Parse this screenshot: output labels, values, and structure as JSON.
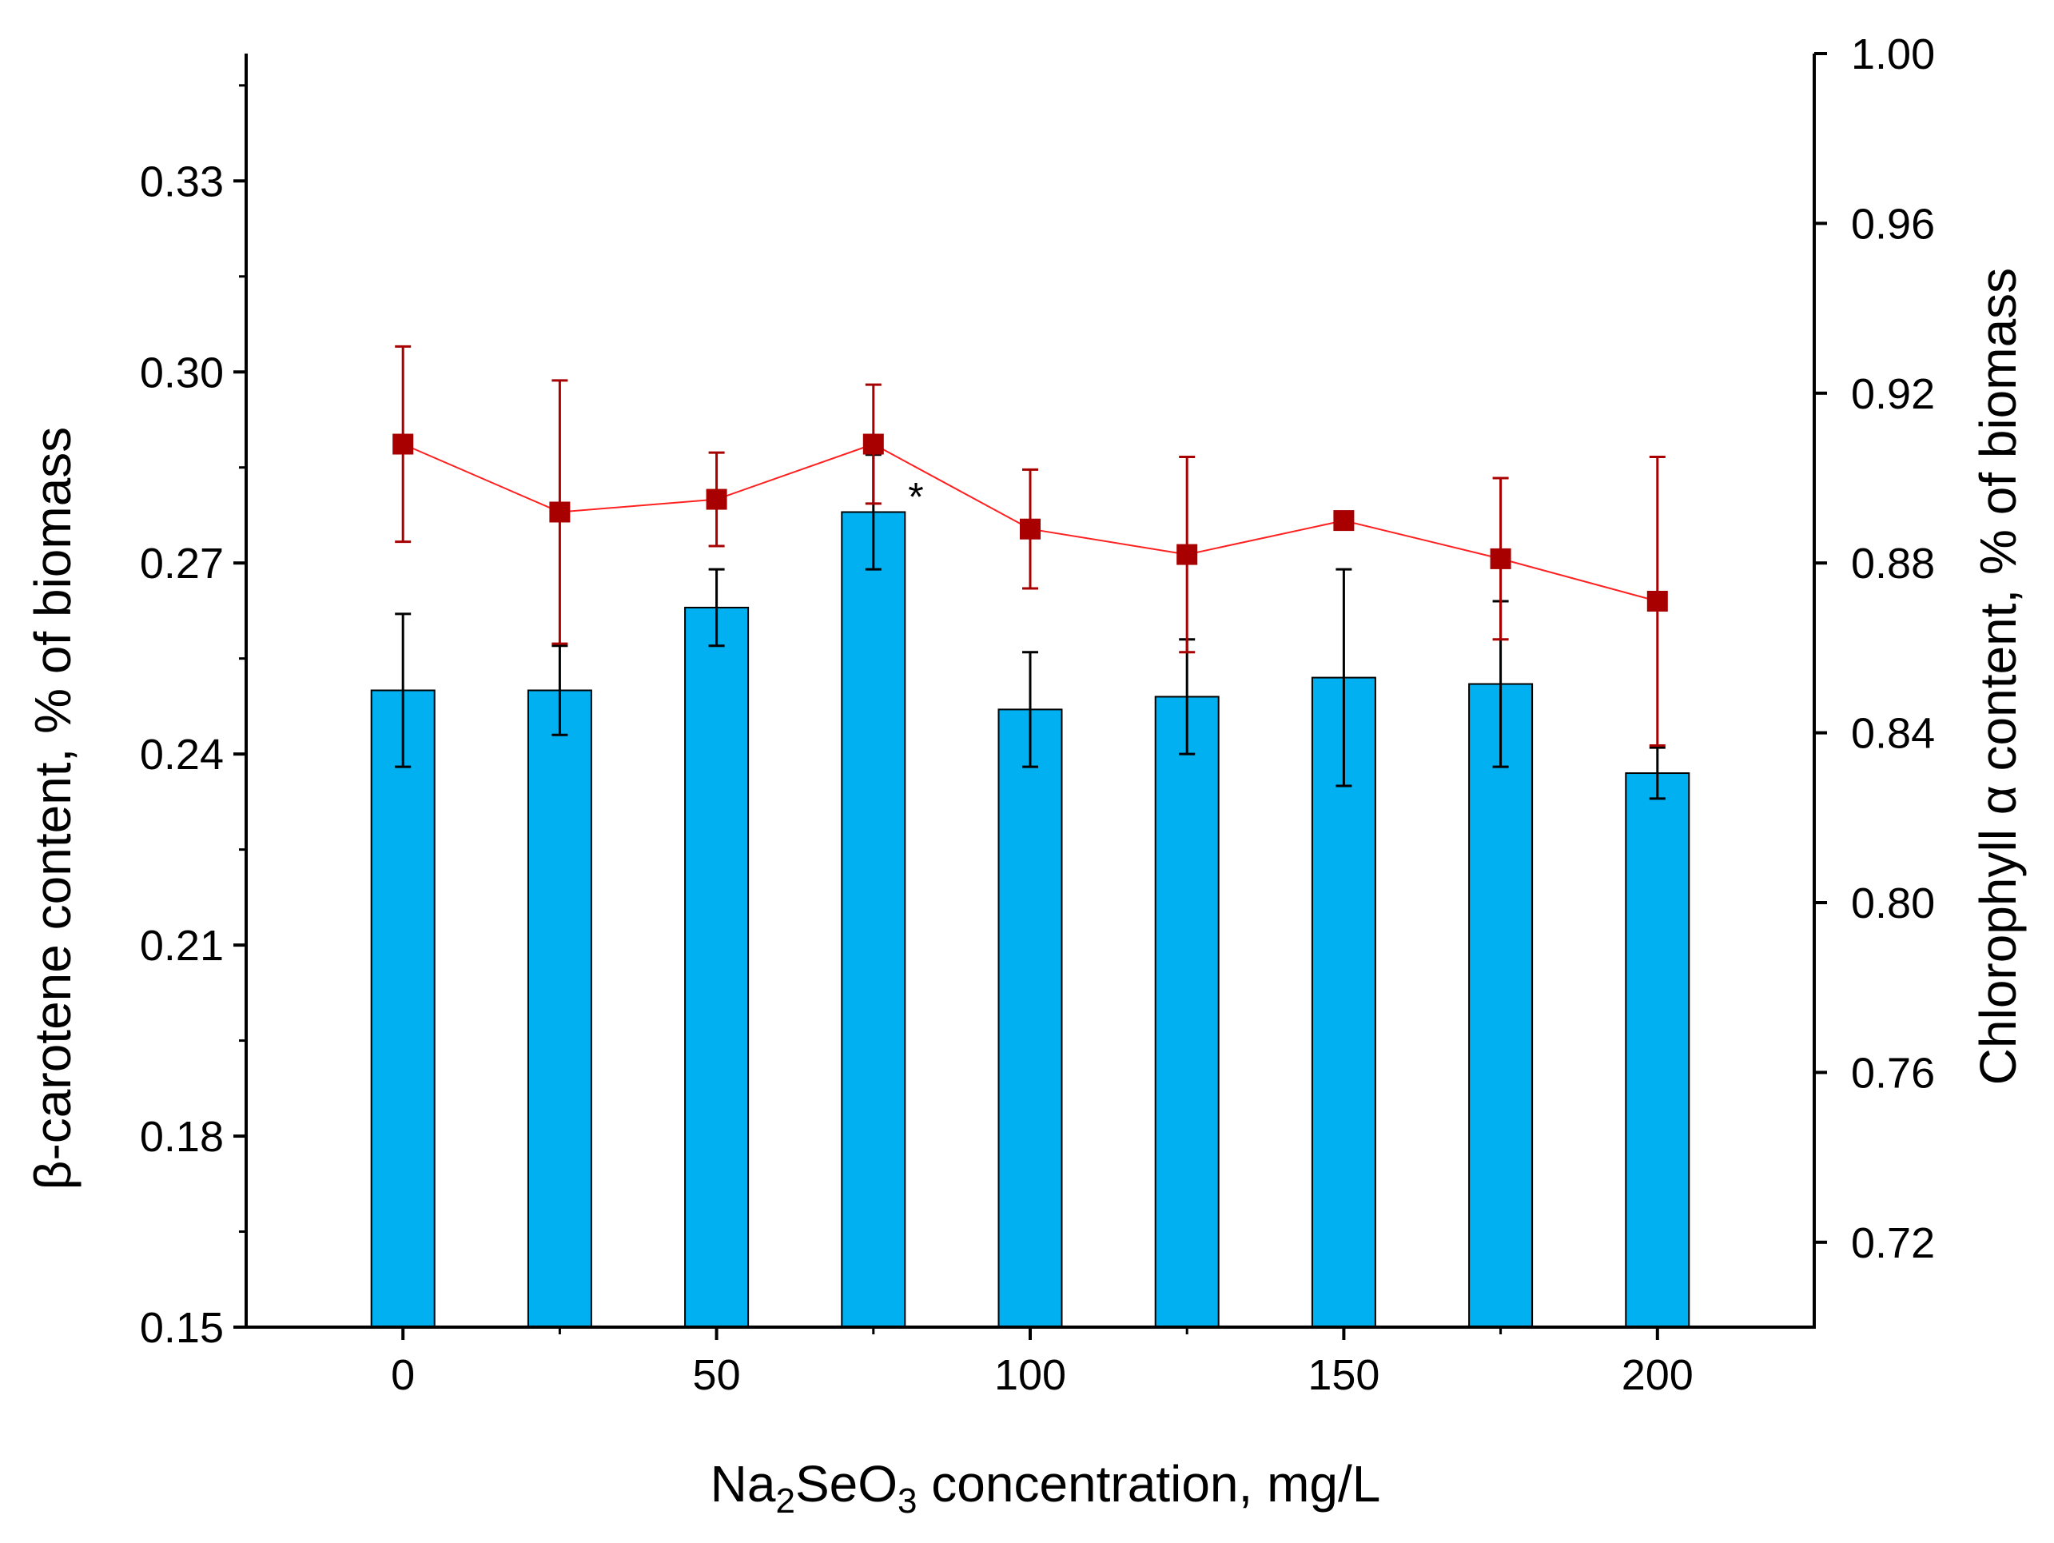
{
  "chart_data": {
    "type": "bar",
    "title": "",
    "x": [
      0,
      25,
      50,
      75,
      100,
      125,
      150,
      175,
      200
    ],
    "xlim": [
      -25,
      225
    ],
    "x_major_ticks": [
      0,
      50,
      100,
      150,
      200
    ],
    "x_minor_ticks": [
      25,
      75,
      125,
      175
    ],
    "x_tick_labels": [
      "0",
      "50",
      "100",
      "150",
      "200"
    ],
    "xlabel": {
      "prefix": "Na",
      "sub1": "2",
      "mid": "SeO",
      "sub2": "3",
      "suffix": " concentration, mg/L"
    },
    "ylabel_left": "β-carotene content, % of biomass",
    "ylim_left": [
      0.15,
      0.35
    ],
    "y_left_ticks": [
      0.15,
      0.18,
      0.21,
      0.24,
      0.27,
      0.3,
      0.33
    ],
    "y_left_tick_labels": [
      "0.15",
      "0.18",
      "0.21",
      "0.24",
      "0.27",
      "0.30",
      "0.33"
    ],
    "ylabel_right": "Chlorophyll α content, % of biomass",
    "ylim_right": [
      0.7,
      1.0
    ],
    "y_right_ticks": [
      0.72,
      0.76,
      0.8,
      0.84,
      0.88,
      0.92,
      0.96,
      1.0
    ],
    "y_right_tick_labels": [
      "0.72",
      "0.76",
      "0.80",
      "0.84",
      "0.88",
      "0.92",
      "0.96",
      "1.00"
    ],
    "series": [
      {
        "name": "β-carotene",
        "type": "bar",
        "axis": "left",
        "color": "#00B0F0",
        "values": [
          0.25,
          0.25,
          0.263,
          0.278,
          0.247,
          0.249,
          0.252,
          0.251,
          0.237
        ],
        "errors": [
          0.012,
          0.007,
          0.006,
          0.009,
          0.009,
          0.009,
          0.017,
          0.013,
          0.004
        ]
      },
      {
        "name": "Chlorophyll α",
        "type": "line",
        "axis": "right",
        "color": "#A80000",
        "line_color": "#FF2020",
        "values": [
          0.908,
          0.892,
          0.895,
          0.908,
          0.888,
          0.882,
          0.89,
          0.881,
          0.871
        ],
        "errors": [
          0.023,
          0.031,
          0.011,
          0.014,
          0.014,
          0.023,
          0.002,
          0.019,
          0.034
        ]
      }
    ],
    "annotations": [
      {
        "text": "*",
        "x": 75
      }
    ]
  }
}
